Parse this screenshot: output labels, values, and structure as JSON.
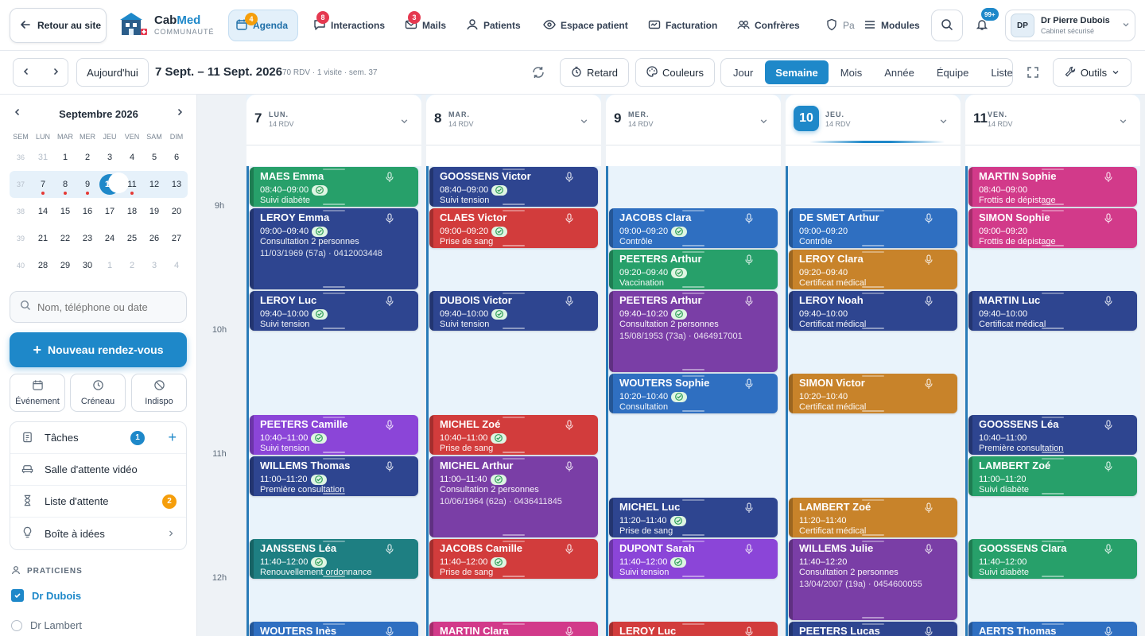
{
  "topbar": {
    "back_label": "Retour au site",
    "brand_name_a": "Cab",
    "brand_name_b": "Med",
    "brand_sub": "COMMUNAUTÉ",
    "nav": [
      {
        "label": "Agenda",
        "badge": "4",
        "badge_color": "#f59e0b",
        "icon": "calendar-icon",
        "active": true
      },
      {
        "label": "Interactions",
        "badge": "8",
        "badge_color": "#e53950",
        "icon": "chat-icon"
      },
      {
        "label": "Mails",
        "badge": "3",
        "badge_color": "#e53950",
        "icon": "mail-icon"
      },
      {
        "label": "Patients",
        "icon": "patients-icon"
      },
      {
        "label": "Espace patient",
        "icon": "eye-icon"
      },
      {
        "label": "Facturation",
        "icon": "invoice-icon"
      },
      {
        "label": "Confrères",
        "icon": "colleagues-icon"
      },
      {
        "label": "Pa",
        "icon": "shield-icon"
      },
      {
        "label": "Modules",
        "icon": "menu-icon"
      }
    ],
    "notif_badge": "99+",
    "user_initials": "DP",
    "user_name": "Dr Pierre Dubois",
    "user_sub": "Cabinet sécurisé"
  },
  "toolbar": {
    "today_label": "Aujourd'hui",
    "range_title": "7 Sept. – 11 Sept. 2026",
    "range_meta": "70 RDV · 1 visite · sem. 37",
    "retard_label": "Retard",
    "couleurs_label": "Couleurs",
    "views": [
      "Jour",
      "Semaine",
      "Mois",
      "Année",
      "Équipe",
      "Liste"
    ],
    "active_view": "Semaine",
    "outils_label": "Outils"
  },
  "sidebar": {
    "month_title": "Septembre 2026",
    "dow": [
      "SEM",
      "LUN",
      "MAR",
      "MER",
      "JEU",
      "VEN",
      "SAM",
      "DIM"
    ],
    "weeks": [
      {
        "wk": "36",
        "days": [
          "31",
          "1",
          "2",
          "3",
          "4",
          "5",
          "6"
        ]
      },
      {
        "wk": "37",
        "days": [
          "7",
          "8",
          "9",
          "10",
          "11",
          "12",
          "13"
        ]
      },
      {
        "wk": "38",
        "days": [
          "14",
          "15",
          "16",
          "17",
          "18",
          "19",
          "20"
        ]
      },
      {
        "wk": "39",
        "days": [
          "21",
          "22",
          "23",
          "24",
          "25",
          "26",
          "27"
        ]
      },
      {
        "wk": "40",
        "days": [
          "28",
          "29",
          "30",
          "1",
          "2",
          "3",
          "4"
        ]
      }
    ],
    "search_placeholder": "Nom, téléphone ou date",
    "new_appt_label": "Nouveau rendez-vous",
    "quick": [
      "Événement",
      "Créneau",
      "Indispo"
    ],
    "menu": [
      {
        "label": "Tâches",
        "badge": "1",
        "badge_color": "#1e88c9"
      },
      {
        "label": "Salle d'attente vidéo"
      },
      {
        "label": "Liste d'attente",
        "badge": "2",
        "badge_color": "#f59e0b"
      },
      {
        "label": "Boîte à idées"
      }
    ],
    "praticiens_title": "PRATICIENS",
    "praticiens": [
      {
        "name": "Dr Dubois",
        "checked": true
      },
      {
        "name": "Dr Lambert",
        "checked": false
      }
    ]
  },
  "calendar": {
    "hours": [
      "9h",
      "10h",
      "11h",
      "12h"
    ],
    "days": [
      {
        "num": "7",
        "name": "LUN.",
        "count": "14 RDV",
        "today": false
      },
      {
        "num": "8",
        "name": "MAR.",
        "count": "14 RDV",
        "today": false
      },
      {
        "num": "9",
        "name": "MER.",
        "count": "14 RDV",
        "today": false
      },
      {
        "num": "10",
        "name": "JEU.",
        "count": "14 RDV",
        "today": true
      },
      {
        "num": "11",
        "name": "VEN.",
        "count": "14 RDV",
        "today": false
      }
    ],
    "appointments": [
      {
        "day": 0,
        "start": "08:40",
        "end": "09:00",
        "name": "MAES Emma",
        "time": "08:40–09:00",
        "reason": "Suivi diabète",
        "color": "#27a06a",
        "check": true
      },
      {
        "day": 0,
        "start": "09:00",
        "end": "09:40",
        "name": "LEROY Emma",
        "time": "09:00–09:40",
        "reason": "Consultation 2 personnes",
        "extra": "11/03/1969 (57a) · 0412003448",
        "color": "#2e4590",
        "check": true
      },
      {
        "day": 0,
        "start": "09:40",
        "end": "10:00",
        "name": "LEROY Luc",
        "time": "09:40–10:00",
        "reason": "Suivi tension",
        "color": "#2e4590",
        "check": true
      },
      {
        "day": 0,
        "start": "10:40",
        "end": "11:00",
        "name": "PEETERS Camille",
        "time": "10:40–11:00",
        "reason": "Suivi tension",
        "color": "#8b45d8",
        "check": true
      },
      {
        "day": 0,
        "start": "11:00",
        "end": "11:20",
        "name": "WILLEMS Thomas",
        "time": "11:00–11:20",
        "reason": "Première consultation",
        "color": "#2e4590",
        "check": true
      },
      {
        "day": 0,
        "start": "11:40",
        "end": "12:00",
        "name": "JANSSENS Léa",
        "time": "11:40–12:00",
        "reason": "Renouvellement ordonnance",
        "color": "#1e7f82",
        "check": true
      },
      {
        "day": 0,
        "start": "12:20",
        "end": "12:40",
        "name": "WOUTERS Inès",
        "time": "",
        "reason": "",
        "color": "#2f6fc1",
        "check": false
      },
      {
        "day": 1,
        "start": "08:40",
        "end": "09:00",
        "name": "GOOSSENS Victor",
        "time": "08:40–09:00",
        "reason": "Suivi tension",
        "color": "#2e4590",
        "check": true
      },
      {
        "day": 1,
        "start": "09:00",
        "end": "09:20",
        "name": "CLAES Victor",
        "time": "09:00–09:20",
        "reason": "Prise de sang",
        "color": "#d23c3c",
        "check": true
      },
      {
        "day": 1,
        "start": "09:40",
        "end": "10:00",
        "name": "DUBOIS Victor",
        "time": "09:40–10:00",
        "reason": "Suivi tension",
        "color": "#2e4590",
        "check": true
      },
      {
        "day": 1,
        "start": "10:40",
        "end": "11:00",
        "name": "MICHEL Zoé",
        "time": "10:40–11:00",
        "reason": "Prise de sang",
        "color": "#d23c3c",
        "check": true
      },
      {
        "day": 1,
        "start": "11:00",
        "end": "11:40",
        "name": "MICHEL Arthur",
        "time": "11:00–11:40",
        "reason": "Consultation 2 personnes",
        "extra": "10/06/1964 (62a) · 0436411845",
        "color": "#7a3ea6",
        "check": true
      },
      {
        "day": 1,
        "start": "11:40",
        "end": "12:00",
        "name": "JACOBS Camille",
        "time": "11:40–12:00",
        "reason": "Prise de sang",
        "color": "#d23c3c",
        "check": true
      },
      {
        "day": 1,
        "start": "12:20",
        "end": "12:40",
        "name": "MARTIN Clara",
        "time": "",
        "reason": "",
        "color": "#d23a8a",
        "check": false
      },
      {
        "day": 2,
        "start": "09:00",
        "end": "09:20",
        "name": "JACOBS Clara",
        "time": "09:00–09:20",
        "reason": "Contrôle",
        "color": "#2f6fc1",
        "check": true
      },
      {
        "day": 2,
        "start": "09:20",
        "end": "09:40",
        "name": "PEETERS Arthur",
        "time": "09:20–09:40",
        "reason": "Vaccination",
        "color": "#27a06a",
        "check": true
      },
      {
        "day": 2,
        "start": "09:40",
        "end": "10:20",
        "name": "PEETERS Arthur",
        "time": "09:40–10:20",
        "reason": "Consultation 2 personnes",
        "extra": "15/08/1953 (73a) · 0464917001",
        "color": "#7a3ea6",
        "check": true
      },
      {
        "day": 2,
        "start": "10:20",
        "end": "10:40",
        "name": "WOUTERS Sophie",
        "time": "10:20–10:40",
        "reason": "Consultation",
        "color": "#2f6fc1",
        "check": true
      },
      {
        "day": 2,
        "start": "11:20",
        "end": "11:40",
        "name": "MICHEL Luc",
        "time": "11:20–11:40",
        "reason": "Prise de sang",
        "color": "#2e4590",
        "check": true
      },
      {
        "day": 2,
        "start": "11:40",
        "end": "12:00",
        "name": "DUPONT Sarah",
        "time": "11:40–12:00",
        "reason": "Suivi tension",
        "color": "#8b45d8",
        "check": true
      },
      {
        "day": 2,
        "start": "12:20",
        "end": "12:40",
        "name": "LEROY Luc",
        "time": "",
        "reason": "",
        "color": "#d23c3c",
        "check": false
      },
      {
        "day": 3,
        "start": "09:00",
        "end": "09:20",
        "name": "DE SMET Arthur",
        "time": "09:00–09:20",
        "reason": "Contrôle",
        "color": "#2f6fc1",
        "check": false
      },
      {
        "day": 3,
        "start": "09:20",
        "end": "09:40",
        "name": "LEROY Clara",
        "time": "09:20–09:40",
        "reason": "Certificat médical",
        "color": "#c8832a",
        "check": false
      },
      {
        "day": 3,
        "start": "09:40",
        "end": "10:00",
        "name": "LEROY Noah",
        "time": "09:40–10:00",
        "reason": "Certificat médical",
        "color": "#2e4590",
        "check": false
      },
      {
        "day": 3,
        "start": "10:20",
        "end": "10:40",
        "name": "SIMON Victor",
        "time": "10:20–10:40",
        "reason": "Certificat médical",
        "color": "#c8832a",
        "check": false
      },
      {
        "day": 3,
        "start": "11:20",
        "end": "11:40",
        "name": "LAMBERT Zoé",
        "time": "11:20–11:40",
        "reason": "Certificat médical",
        "color": "#c8832a",
        "check": false
      },
      {
        "day": 3,
        "start": "11:40",
        "end": "12:20",
        "name": "WILLEMS Julie",
        "time": "11:40–12:20",
        "reason": "Consultation 2 personnes",
        "extra": "13/04/2007 (19a) · 0454600055",
        "color": "#7a3ea6",
        "check": false
      },
      {
        "day": 3,
        "start": "12:20",
        "end": "12:40",
        "name": "PEETERS Lucas",
        "time": "",
        "reason": "",
        "color": "#2e4590",
        "check": false
      },
      {
        "day": 4,
        "start": "08:40",
        "end": "09:00",
        "name": "MARTIN Sophie",
        "time": "08:40–09:00",
        "reason": "Frottis de dépistage",
        "color": "#d23a8a",
        "check": false
      },
      {
        "day": 4,
        "start": "09:00",
        "end": "09:20",
        "name": "SIMON Sophie",
        "time": "09:00–09:20",
        "reason": "Frottis de dépistage",
        "color": "#d23a8a",
        "check": false
      },
      {
        "day": 4,
        "start": "09:40",
        "end": "10:00",
        "name": "MARTIN Luc",
        "time": "09:40–10:00",
        "reason": "Certificat médical",
        "color": "#2e4590",
        "check": false
      },
      {
        "day": 4,
        "start": "10:40",
        "end": "11:00",
        "name": "GOOSSENS Léa",
        "time": "10:40–11:00",
        "reason": "Première consultation",
        "color": "#2e4590",
        "check": false
      },
      {
        "day": 4,
        "start": "11:00",
        "end": "11:20",
        "name": "LAMBERT Zoé",
        "time": "11:00–11:20",
        "reason": "Suivi diabète",
        "color": "#27a06a",
        "check": false
      },
      {
        "day": 4,
        "start": "11:40",
        "end": "12:00",
        "name": "GOOSSENS Clara",
        "time": "11:40–12:00",
        "reason": "Suivi diabète",
        "color": "#27a06a",
        "check": false
      },
      {
        "day": 4,
        "start": "12:20",
        "end": "12:40",
        "name": "AERTS Thomas",
        "time": "",
        "reason": "",
        "color": "#2f6fc1",
        "check": false
      }
    ]
  }
}
